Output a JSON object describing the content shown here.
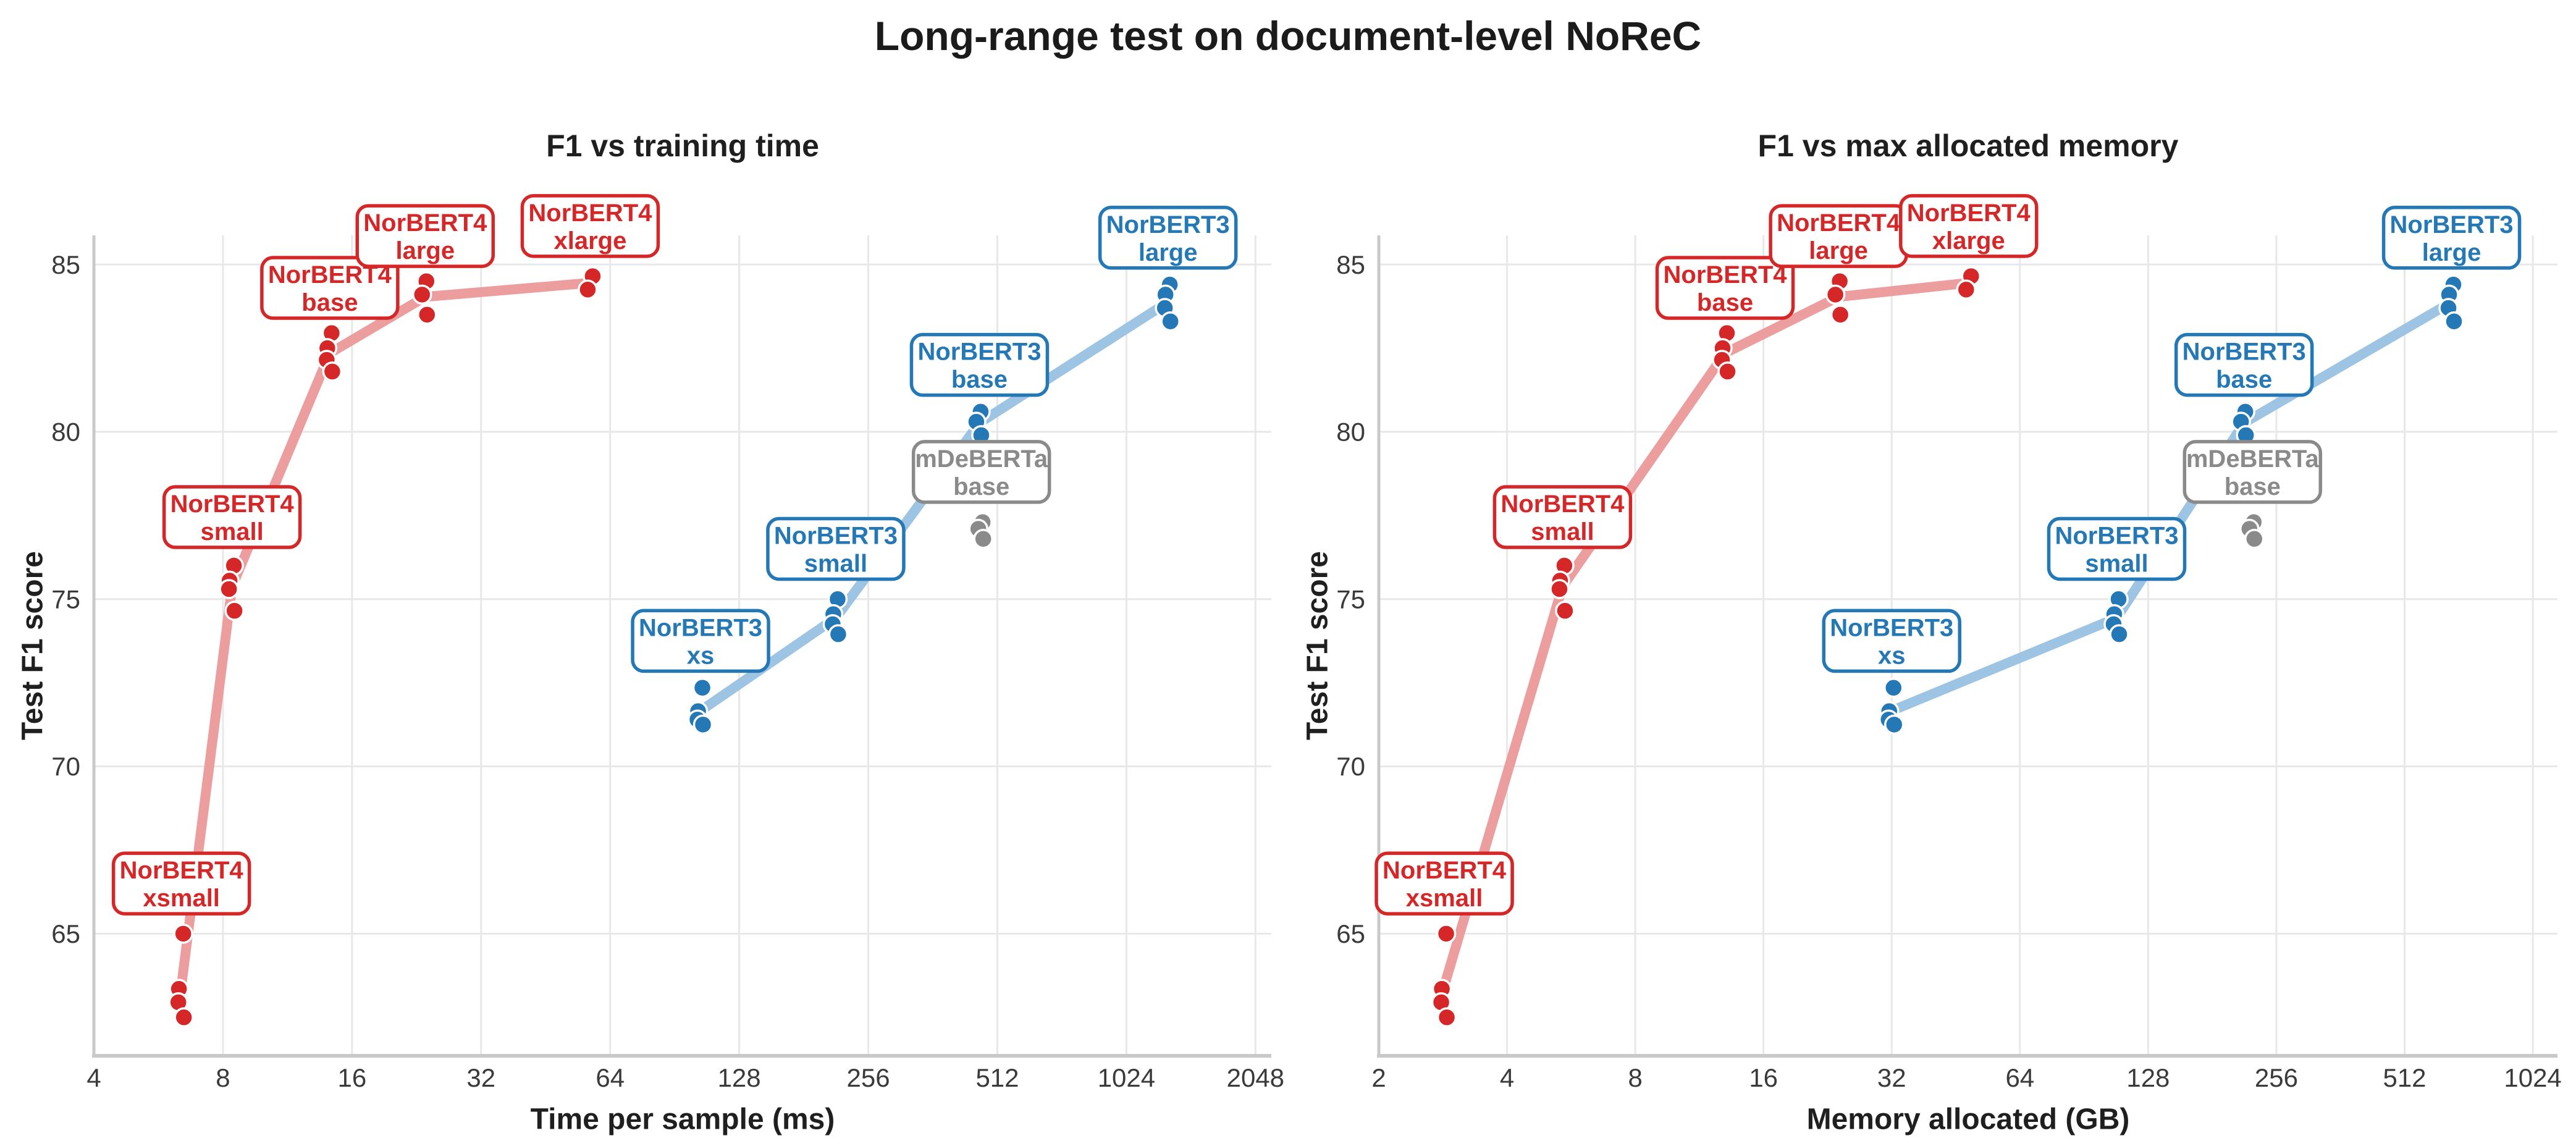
{
  "title": "Long-range test on document-level NoReC",
  "colors": {
    "red": "#d62728",
    "red_line": "#ec9e9e",
    "blue": "#2478b5",
    "blue_line": "#9dc4e2",
    "gray": "#8a8a8a",
    "gray_line": "#c4c4c4",
    "grid": "#e8e8e8",
    "spine": "#c9c9c9",
    "tick_text": "#3a3a3a",
    "background": "#ffffff"
  },
  "chart_data": [
    {
      "id": "time",
      "type": "scatter",
      "title": "F1 vs training time",
      "xlabel": "Time per sample (ms)",
      "ylabel": "Test F1 score",
      "xscale": "log2",
      "xlim": [
        4,
        2230
      ],
      "ylim": [
        61.35,
        85.87
      ],
      "xticks": [
        4,
        8,
        16,
        32,
        64,
        128,
        256,
        512,
        1024,
        2048
      ],
      "yticks": [
        65,
        70,
        75,
        80,
        85
      ],
      "grid": true,
      "series": [
        {
          "name": "NorBERT4",
          "color": "red",
          "groups": [
            {
              "label": [
                "NorBERT4",
                "xsmall"
              ],
              "x": 6.4,
              "f1": [
                65.0,
                63.35,
                62.95,
                62.5
              ],
              "label_f1": 66.5
            },
            {
              "label": [
                "NorBERT4",
                "small"
              ],
              "x": 8.4,
              "f1": [
                76.0,
                75.55,
                75.3,
                74.65
              ],
              "label_f1": 77.45
            },
            {
              "label": [
                "NorBERT4",
                "base"
              ],
              "x": 14.2,
              "f1": [
                82.95,
                82.5,
                82.15,
                81.8
              ],
              "label_f1": 84.3
            },
            {
              "label": [
                "NorBERT4",
                "large"
              ],
              "x": 23.7,
              "f1": [
                84.5,
                84.1,
                83.5
              ],
              "label_f1": 85.85
            },
            {
              "label": [
                "NorBERT4",
                "xlarge"
              ],
              "x": 57.5,
              "f1": [
                84.65,
                84.25
              ],
              "label_f1": 86.15
            }
          ]
        },
        {
          "name": "NorBERT3",
          "color": "blue",
          "groups": [
            {
              "label": [
                "NorBERT3",
                "xs"
              ],
              "x": 104,
              "f1": [
                72.35,
                71.65,
                71.4,
                71.25
              ],
              "label_f1": 73.75
            },
            {
              "label": [
                "NorBERT3",
                "small"
              ],
              "x": 215,
              "f1": [
                75.0,
                74.55,
                74.25,
                73.95
              ],
              "label_f1": 76.5
            },
            {
              "label": [
                "NorBERT3",
                "base"
              ],
              "x": 465,
              "f1": [
                80.6,
                80.3,
                79.9
              ],
              "label_f1": 82.0
            },
            {
              "label": [
                "NorBERT3",
                "large"
              ],
              "x": 1280,
              "f1": [
                84.4,
                84.1,
                83.7,
                83.3
              ],
              "label_f1": 85.8
            }
          ]
        },
        {
          "name": "mDeBERTa",
          "color": "gray",
          "groups": [
            {
              "label": [
                "mDeBERTa",
                "base"
              ],
              "x": 470,
              "f1": [
                77.3,
                77.1,
                76.8
              ],
              "label_f1": 78.8
            }
          ]
        }
      ]
    },
    {
      "id": "memory",
      "type": "scatter",
      "title": "F1 vs max allocated memory",
      "xlabel": "Memory allocated (GB)",
      "ylabel": "Test F1 score",
      "xscale": "log2",
      "xlim": [
        2,
        1170
      ],
      "ylim": [
        61.35,
        85.87
      ],
      "xticks": [
        2,
        4,
        8,
        16,
        32,
        64,
        128,
        256,
        512,
        1024
      ],
      "yticks": [
        65,
        70,
        75,
        80,
        85
      ],
      "grid": true,
      "series": [
        {
          "name": "NorBERT4",
          "color": "red",
          "groups": [
            {
              "label": [
                "NorBERT4",
                "xsmall"
              ],
              "x": 2.85,
              "f1": [
                65.0,
                63.35,
                62.95,
                62.5
              ],
              "label_f1": 66.5
            },
            {
              "label": [
                "NorBERT4",
                "small"
              ],
              "x": 5.4,
              "f1": [
                76.0,
                75.55,
                75.3,
                74.65
              ],
              "label_f1": 77.45
            },
            {
              "label": [
                "NorBERT4",
                "base"
              ],
              "x": 13,
              "f1": [
                82.95,
                82.5,
                82.15,
                81.8
              ],
              "label_f1": 84.3
            },
            {
              "label": [
                "NorBERT4",
                "large"
              ],
              "x": 24,
              "f1": [
                84.5,
                84.1,
                83.5
              ],
              "label_f1": 85.85
            },
            {
              "label": [
                "NorBERT4",
                "xlarge"
              ],
              "x": 48.5,
              "f1": [
                84.65,
                84.25
              ],
              "label_f1": 86.15
            }
          ]
        },
        {
          "name": "NorBERT3",
          "color": "blue",
          "groups": [
            {
              "label": [
                "NorBERT3",
                "xs"
              ],
              "x": 32,
              "f1": [
                72.35,
                71.65,
                71.4,
                71.25
              ],
              "label_f1": 73.75
            },
            {
              "label": [
                "NorBERT3",
                "small"
              ],
              "x": 108,
              "f1": [
                75.0,
                74.55,
                74.25,
                73.95
              ],
              "label_f1": 76.5
            },
            {
              "label": [
                "NorBERT3",
                "base"
              ],
              "x": 215,
              "f1": [
                80.6,
                80.3,
                79.9
              ],
              "label_f1": 82.0
            },
            {
              "label": [
                "NorBERT3",
                "large"
              ],
              "x": 660,
              "f1": [
                84.4,
                84.1,
                83.7,
                83.3
              ],
              "label_f1": 85.8
            }
          ]
        },
        {
          "name": "mDeBERTa",
          "color": "gray",
          "groups": [
            {
              "label": [
                "mDeBERTa",
                "base"
              ],
              "x": 225,
              "f1": [
                77.3,
                77.1,
                76.8
              ],
              "label_f1": 78.8
            }
          ]
        }
      ]
    }
  ]
}
